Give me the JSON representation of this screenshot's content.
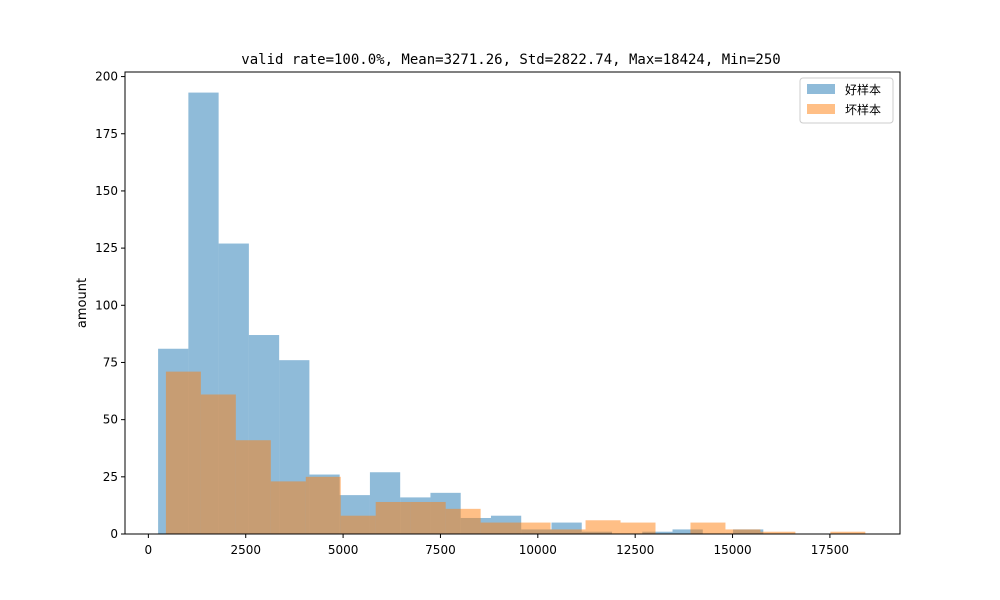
{
  "chart_data": {
    "type": "histogram",
    "title": "valid rate=100.0%, Mean=3271.26, Std=2822.74, Max=18424, Min=250",
    "xlabel": "",
    "ylabel": "amount",
    "xlim": [
      -600,
      19300
    ],
    "ylim": [
      0,
      202
    ],
    "xticks": [
      0,
      2500,
      5000,
      7500,
      10000,
      12500,
      15000,
      17500
    ],
    "yticks": [
      0,
      25,
      50,
      75,
      100,
      125,
      150,
      175,
      200
    ],
    "legend_position": "top-right",
    "series": [
      {
        "name": "好样本",
        "color": "#1f77b4",
        "opacity": 0.5,
        "bin_edges": [
          250,
          1027,
          1804,
          2581,
          3358,
          4135,
          4912,
          5689,
          6466,
          7243,
          8020,
          8797,
          9574,
          10351,
          11128,
          11905,
          12682,
          13459,
          14236,
          15013,
          15790
        ],
        "counts": [
          81,
          193,
          127,
          87,
          76,
          26,
          17,
          27,
          16,
          18,
          7,
          8,
          2,
          5,
          1,
          0,
          1,
          2,
          0,
          2
        ]
      },
      {
        "name": "坏样本",
        "color": "#ff7f0e",
        "opacity": 0.5,
        "bin_edges": [
          450,
          1348,
          2246,
          3144,
          4042,
          4940,
          5838,
          6736,
          7634,
          8532,
          9430,
          10328,
          11226,
          12124,
          13022,
          13920,
          14818,
          15716,
          16614,
          17512,
          18410
        ],
        "counts": [
          71,
          61,
          41,
          23,
          25,
          8,
          14,
          14,
          11,
          5,
          5,
          2,
          6,
          5,
          0,
          5,
          2,
          1,
          0,
          1
        ]
      }
    ]
  }
}
